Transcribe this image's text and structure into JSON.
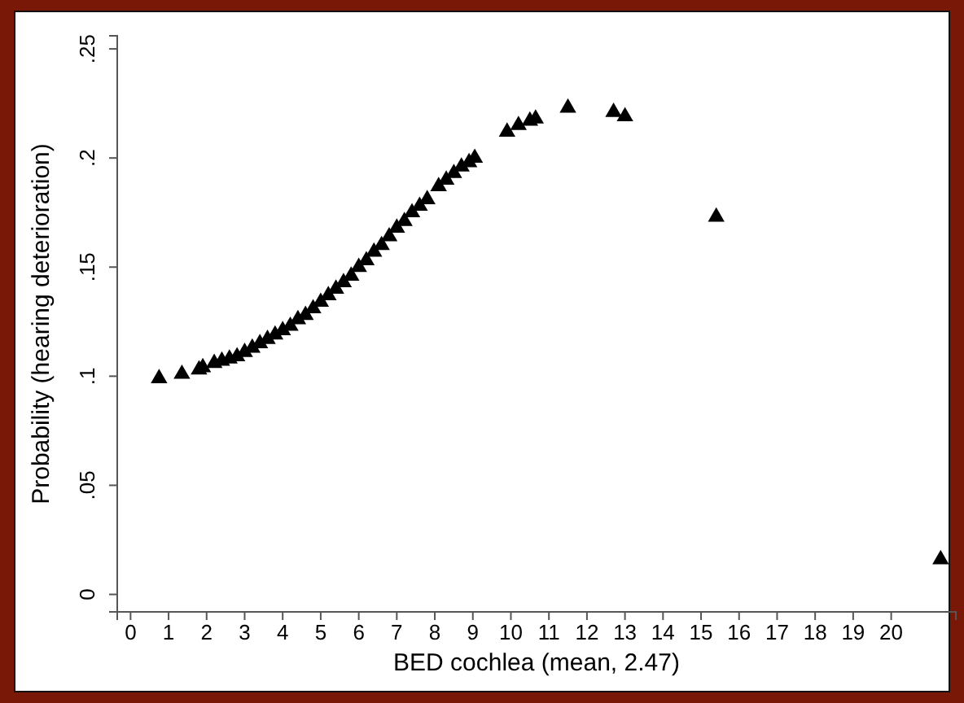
{
  "chart_data": {
    "type": "scatter",
    "xlabel": "BED cochlea (mean, 2.47)",
    "ylabel": "Probability (hearing deterioration)",
    "x": [
      0.75,
      1.35,
      1.8,
      1.9,
      2.2,
      2.4,
      2.6,
      2.8,
      3.0,
      3.2,
      3.4,
      3.6,
      3.8,
      4.0,
      4.2,
      4.4,
      4.6,
      4.8,
      5.0,
      5.2,
      5.4,
      5.6,
      5.8,
      6.0,
      6.2,
      6.4,
      6.6,
      6.8,
      7.0,
      7.2,
      7.4,
      7.6,
      7.8,
      8.1,
      8.3,
      8.5,
      8.7,
      8.9,
      9.05,
      9.9,
      10.2,
      10.5,
      10.65,
      11.5,
      12.7,
      13.0,
      15.4,
      21.3
    ],
    "series": [
      {
        "color": "#000000",
        "values": [
          0.099,
          0.101,
          0.103,
          0.104,
          0.106,
          0.107,
          0.108,
          0.109,
          0.111,
          0.113,
          0.115,
          0.117,
          0.119,
          0.121,
          0.123,
          0.126,
          0.128,
          0.131,
          0.134,
          0.137,
          0.14,
          0.143,
          0.146,
          0.15,
          0.153,
          0.157,
          0.16,
          0.164,
          0.168,
          0.171,
          0.175,
          0.178,
          0.181,
          0.187,
          0.19,
          0.193,
          0.196,
          0.198,
          0.2,
          0.212,
          0.215,
          0.217,
          0.218,
          0.223,
          0.221,
          0.219,
          0.173,
          0.016
        ]
      }
    ],
    "xlim": [
      -0.35,
      21.7
    ],
    "xticks": [
      0,
      1,
      2,
      3,
      4,
      5,
      6,
      7,
      8,
      9,
      10,
      11,
      12,
      13,
      14,
      15,
      16,
      17,
      18,
      19,
      20
    ],
    "ylim": [
      -0.008,
      0.256
    ],
    "yticks": [
      {
        "value": 0,
        "label": "0"
      },
      {
        "value": 0.05,
        "label": ".05"
      },
      {
        "value": 0.1,
        "label": ".1"
      },
      {
        "value": 0.15,
        "label": ".15"
      },
      {
        "value": 0.2,
        "label": ".2"
      },
      {
        "value": 0.25,
        "label": ".25"
      }
    ],
    "marker": "triangle"
  }
}
